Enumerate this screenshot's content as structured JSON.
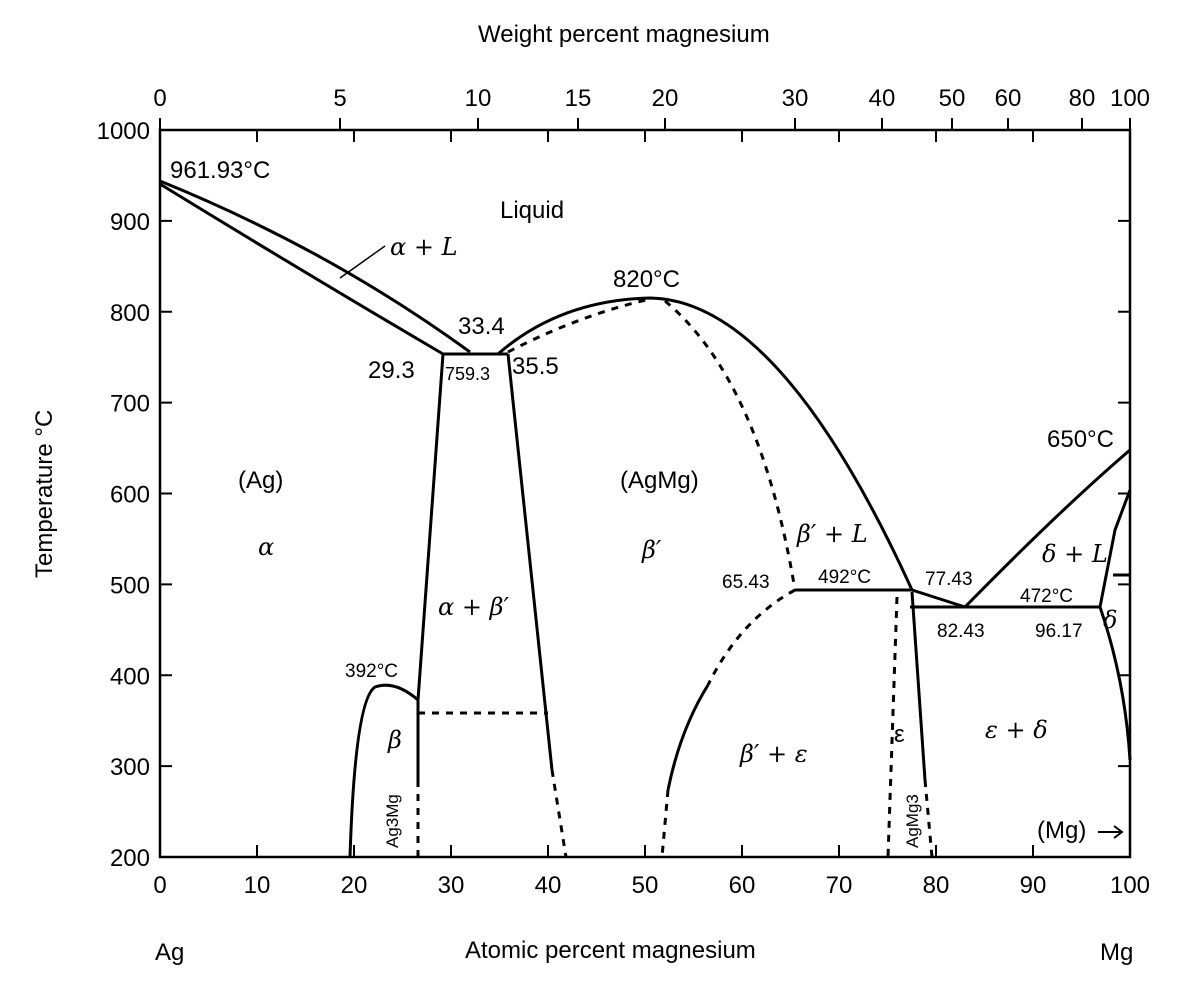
{
  "top_axis": {
    "title": "Weight percent magnesium",
    "ticks": [
      "0",
      "5",
      "10",
      "15",
      "20",
      "30",
      "40",
      "50",
      "60",
      "80",
      "100"
    ]
  },
  "bottom_axis": {
    "title": "Atomic percent magnesium",
    "ticks": [
      "0",
      "10",
      "20",
      "30",
      "40",
      "50",
      "60",
      "70",
      "80",
      "90",
      "100"
    ],
    "left_element": "Ag",
    "right_element": "Mg"
  },
  "left_axis": {
    "title": "Temperature °C",
    "ticks": [
      "1000",
      "900",
      "800",
      "700",
      "600",
      "500",
      "400",
      "300",
      "200"
    ]
  },
  "labels": {
    "ag_melt": "961.93°C",
    "liquid": "Liquid",
    "alpha_L": "α + L",
    "peak": "820°C",
    "c334": "33.4",
    "c293": "29.3",
    "c7593": "759.3",
    "c355": "35.5",
    "mg_melt": "650°C",
    "ag": "(Ag)",
    "alpha": "α",
    "agmg": "(AgMg)",
    "beta_p": "β′",
    "beta_p_L": "β′ + L",
    "delta_L": "δ + L",
    "c6543": "65.43",
    "c492": "492°C",
    "c7743": "77.43",
    "c472": "472°C",
    "c8243": "82.43",
    "c9617": "96.17",
    "delta": "δ",
    "alpha_beta": "α + β′",
    "c392": "392°C",
    "beta": "β",
    "ag3mg": "Ag3Mg",
    "beta_eps": "β′ + ε",
    "eps": "ε",
    "agmg3": "AgMg3",
    "eps_delta": "ε + δ",
    "mg": "(Mg)"
  }
}
